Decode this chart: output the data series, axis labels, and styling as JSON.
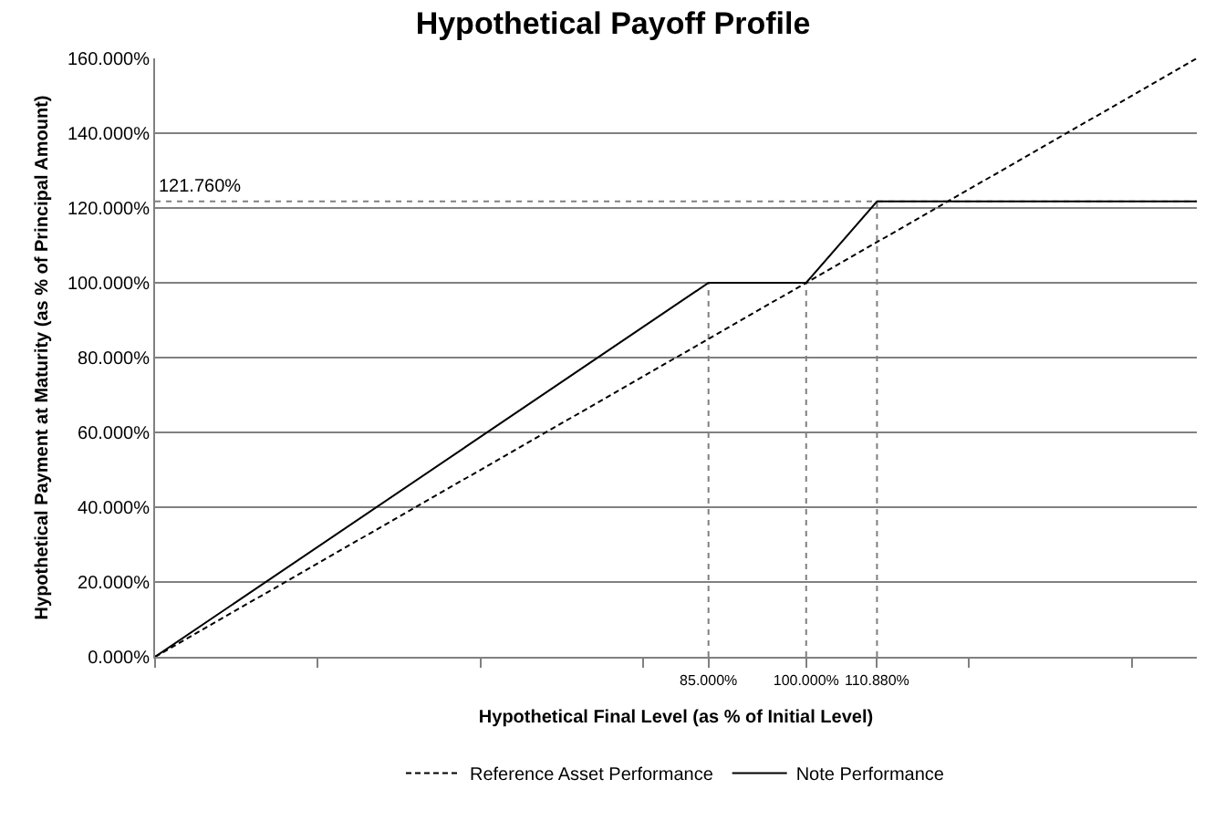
{
  "chart_data": {
    "type": "line",
    "title": "Hypothetical Payoff Profile",
    "xlabel": "Hypothetical Final Level (as % of Initial Level)",
    "ylabel": "Hypothetical Payment at Maturity (as % of Principal Amount)",
    "xlim": [
      0,
      160
    ],
    "xticks": [
      {
        "value": 0,
        "label": null
      },
      {
        "value": 25,
        "label": null
      },
      {
        "value": 50,
        "label": null
      },
      {
        "value": 75,
        "label": null
      },
      {
        "value": 85,
        "label": "85.000%"
      },
      {
        "value": 100,
        "label": "100.000%"
      },
      {
        "value": 110.88,
        "label": "110.880%"
      },
      {
        "value": 125,
        "label": null
      },
      {
        "value": 150,
        "label": null
      }
    ],
    "ylim": [
      0,
      160
    ],
    "yticks": [
      {
        "value": 0,
        "label": "0.000%"
      },
      {
        "value": 20,
        "label": "20.000%"
      },
      {
        "value": 40,
        "label": "40.000%"
      },
      {
        "value": 60,
        "label": "60.000%"
      },
      {
        "value": 80,
        "label": "80.000%"
      },
      {
        "value": 100,
        "label": "100.000%"
      },
      {
        "value": 120,
        "label": "120.000%"
      },
      {
        "value": 140,
        "label": "140.000%"
      },
      {
        "value": 160,
        "label": "160.000%"
      }
    ],
    "grid": "y",
    "legend": "bottom",
    "marker": "none",
    "series": [
      {
        "x": [
          85,
          85
        ],
        "values": [
          0,
          100
        ],
        "color": "#808080",
        "line_style": "dotted"
      },
      {
        "x": [
          100,
          100
        ],
        "values": [
          0,
          100
        ],
        "color": "#808080",
        "line_style": "dotted"
      },
      {
        "x": [
          110.88,
          110.88
        ],
        "values": [
          0,
          121.76
        ],
        "color": "#808080",
        "line_style": "dotted"
      },
      {
        "name": "Reference Asset Performance",
        "x": [
          0,
          160
        ],
        "values": [
          0,
          160
        ],
        "color": "#000000",
        "line_style": "dashed"
      },
      {
        "name": "Note Performance",
        "x": [
          0,
          85,
          100,
          110.88,
          160
        ],
        "values": [
          0,
          100,
          100,
          121.76,
          121.76
        ],
        "color": "#000000",
        "line_style": "solid"
      }
    ],
    "ref_lines": [
      {
        "axis": "y",
        "value": 121.76,
        "label": "121.760%",
        "color": "#808080",
        "line_style": "dotted"
      }
    ]
  }
}
